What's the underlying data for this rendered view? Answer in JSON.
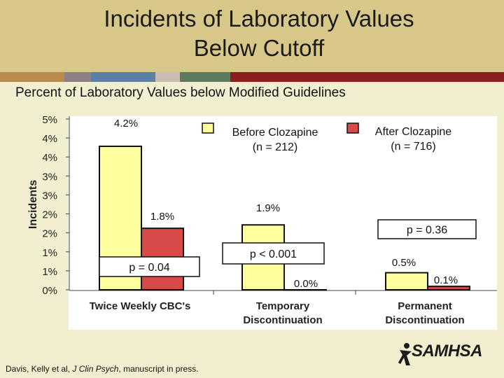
{
  "title_line1": "Incidents of Laboratory Values",
  "title_line2": "Below Cutoff",
  "subtitle": "Percent of Laboratory Values below Modified Guidelines",
  "stripe_colors": [
    "#b98c4e",
    "#8c7f86",
    "#5d7fa4",
    "#c8bdb0",
    "#5e7b5f",
    "#8a1f1f"
  ],
  "footer": {
    "prefix": "Davis, Kelly et al, ",
    "journal": "J Clin Psych",
    "suffix": ", manuscript in press."
  },
  "logo": {
    "text": "SAMHSA"
  },
  "legend": {
    "before_line1": "Before Clozapine",
    "before_line2": "(n = 212)",
    "after_line1": "After Clozapine",
    "after_line2": "(n = 716)"
  },
  "chart_data": {
    "type": "bar",
    "title": "",
    "ylabel": "Incidents",
    "categories": [
      "Twice Weekly CBC's",
      "Temporary Discontinuation",
      "Permanent Discontinuation"
    ],
    "category_lines": [
      [
        "Twice Weekly CBC's"
      ],
      [
        "Temporary",
        "Discontinuation"
      ],
      [
        "Permanent",
        "Discontinuation"
      ]
    ],
    "series": [
      {
        "name": "Before Clozapine (n = 212)",
        "values": [
          4.2,
          1.9,
          0.5
        ],
        "color": "#ffffa0"
      },
      {
        "name": "After Clozapine (n = 716)",
        "values": [
          1.8,
          0.0,
          0.1
        ],
        "color": "#d84a4a"
      }
    ],
    "value_labels": [
      [
        "4.2%",
        "1.9%",
        "0.5%"
      ],
      [
        "1.8%",
        "0.0%",
        "0.1%"
      ]
    ],
    "p_values": [
      "p = 0.04",
      "p < 0.001",
      "p = 0.36"
    ],
    "ylim": [
      0,
      5
    ],
    "yticks": [
      "0%",
      "1%",
      "1%",
      "2%",
      "2%",
      "3%",
      "3%",
      "4%",
      "4%",
      "5%"
    ],
    "grid": false
  }
}
